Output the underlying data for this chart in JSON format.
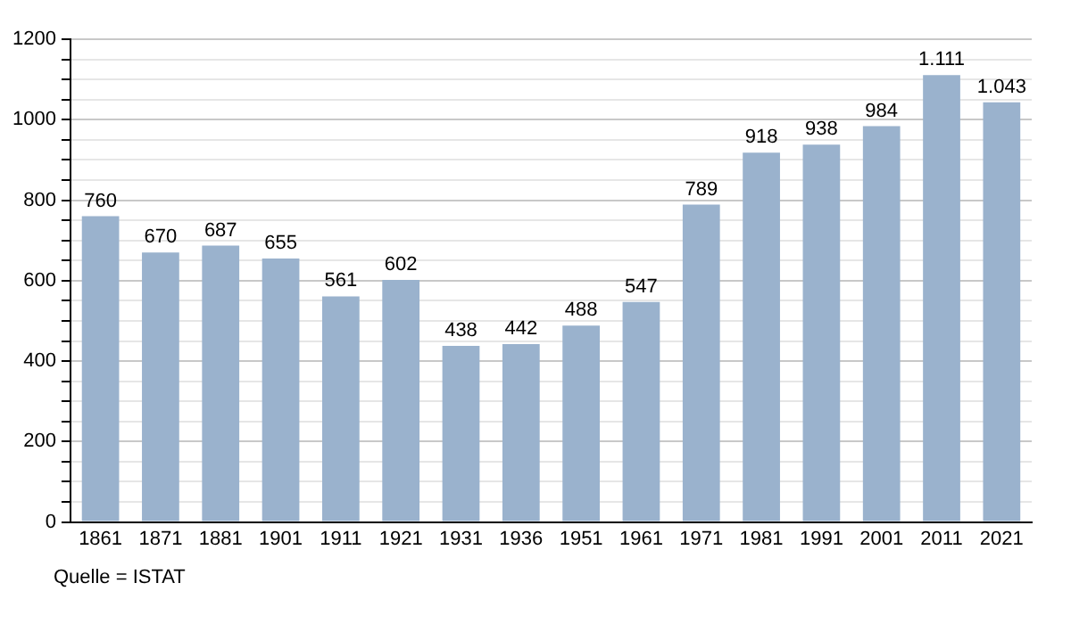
{
  "chart_data": {
    "type": "bar",
    "categories": [
      "1861",
      "1871",
      "1881",
      "1901",
      "1911",
      "1921",
      "1931",
      "1936",
      "1951",
      "1961",
      "1971",
      "1981",
      "1991",
      "2001",
      "2011",
      "2021"
    ],
    "values": [
      760,
      670,
      687,
      655,
      561,
      602,
      438,
      442,
      488,
      547,
      789,
      918,
      938,
      984,
      1111,
      1043
    ],
    "value_labels": [
      "760",
      "670",
      "687",
      "655",
      "561",
      "602",
      "438",
      "442",
      "488",
      "547",
      "789",
      "918",
      "938",
      "984",
      "1.111",
      "1.043"
    ],
    "color": "#9ab2cd",
    "ylim": [
      0,
      1200
    ],
    "yticks": [
      0,
      {
        "value": 50,
        "label": null
      },
      {
        "value": 100,
        "label": null
      },
      {
        "value": 150,
        "label": null
      },
      200,
      {
        "value": 250,
        "label": null
      },
      {
        "value": 300,
        "label": null
      },
      {
        "value": 350,
        "label": null
      },
      400,
      {
        "value": 450,
        "label": null
      },
      {
        "value": 500,
        "label": null
      },
      {
        "value": 550,
        "label": null
      },
      600,
      {
        "value": 650,
        "label": null
      },
      {
        "value": 700,
        "label": null
      },
      {
        "value": 750,
        "label": null
      },
      800,
      {
        "value": 850,
        "label": null
      },
      {
        "value": 900,
        "label": null
      },
      {
        "value": 950,
        "label": null
      },
      1000,
      {
        "value": 1050,
        "label": null
      },
      {
        "value": 1100,
        "label": null
      },
      {
        "value": 1150,
        "label": null
      },
      1200
    ],
    "grid": "y",
    "annotations": [
      "Quelle = ISTAT"
    ]
  }
}
